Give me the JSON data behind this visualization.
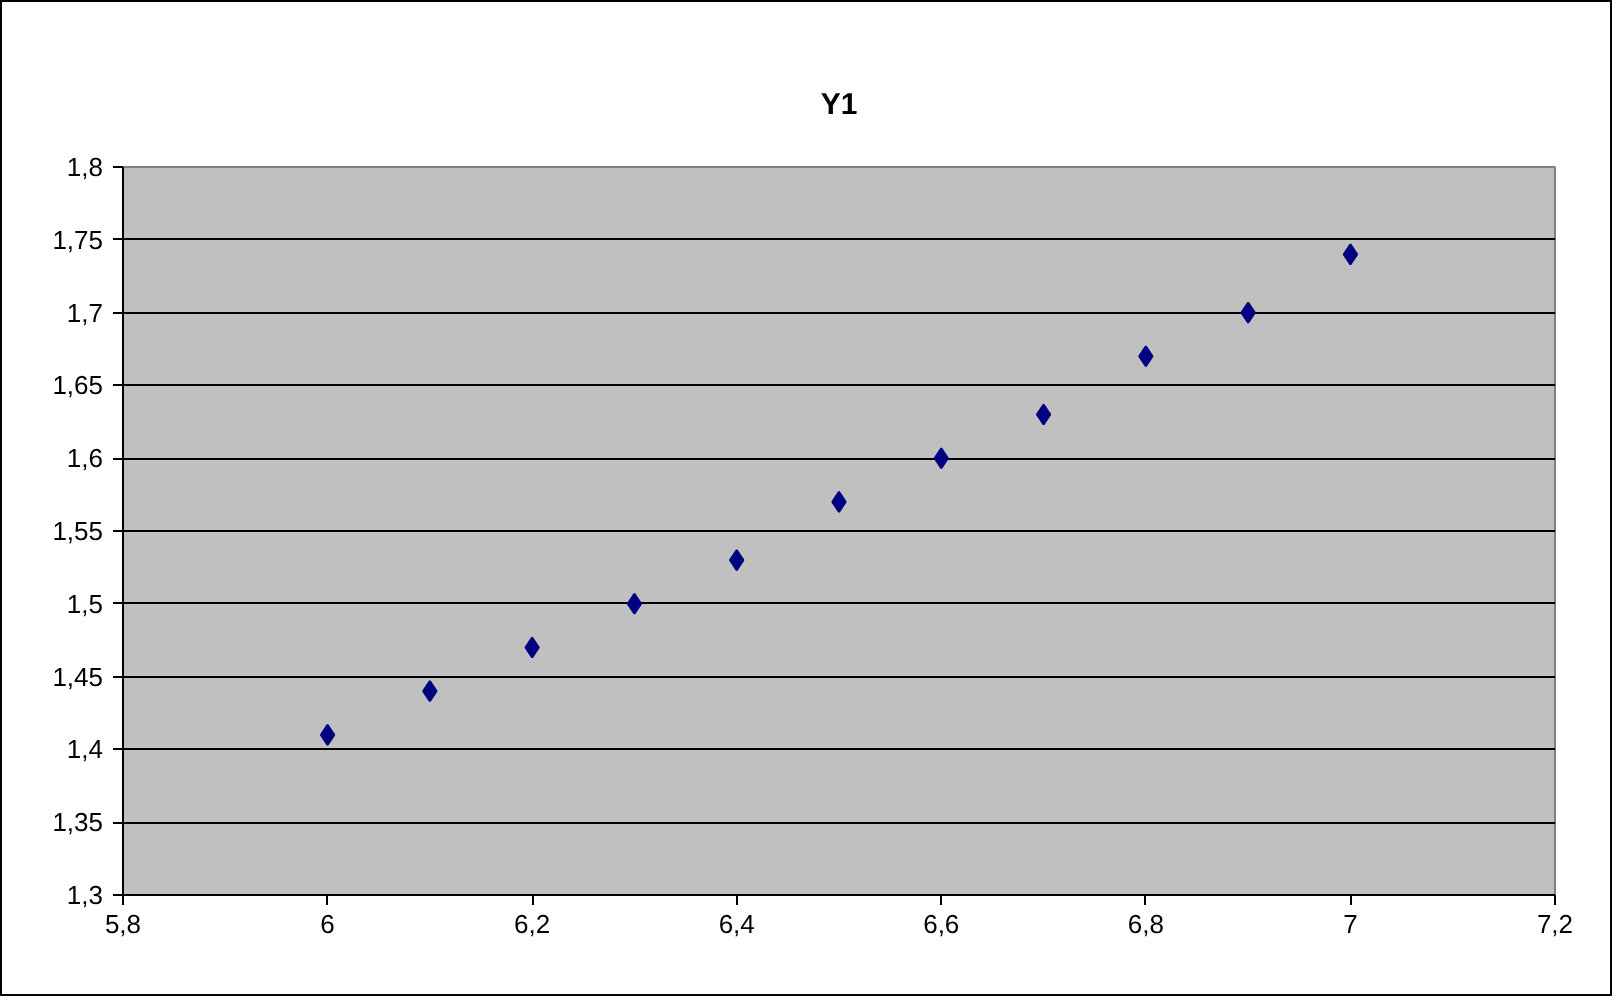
{
  "chart_data": {
    "type": "scatter",
    "title": "Y1",
    "x": [
      6,
      6.1,
      6.2,
      6.3,
      6.4,
      6.5,
      6.6,
      6.7,
      6.8,
      6.9,
      7
    ],
    "series": [
      {
        "color": "#000080",
        "values": [
          1.41,
          1.44,
          1.47,
          1.5,
          1.53,
          1.57,
          1.6,
          1.63,
          1.67,
          1.7,
          1.74
        ]
      }
    ],
    "marker": "diamond",
    "grid": "y",
    "xlim": [
      5.8,
      7.2
    ],
    "xticks": [
      {
        "value": 5.8,
        "label": "5,8"
      },
      6,
      {
        "value": 6.2,
        "label": "6,2"
      },
      {
        "value": 6.4,
        "label": "6,4"
      },
      {
        "value": 6.6,
        "label": "6,6"
      },
      {
        "value": 6.8,
        "label": "6,8"
      },
      7,
      {
        "value": 7.2,
        "label": "7,2"
      }
    ],
    "ylim": [
      1.3,
      1.8
    ],
    "yticks": [
      {
        "value": 1.3,
        "label": "1,3"
      },
      {
        "value": 1.35,
        "label": "1,35"
      },
      {
        "value": 1.4,
        "label": "1,4"
      },
      {
        "value": 1.45,
        "label": "1,45"
      },
      {
        "value": 1.5,
        "label": "1,5"
      },
      {
        "value": 1.55,
        "label": "1,55"
      },
      {
        "value": 1.6,
        "label": "1,6"
      },
      {
        "value": 1.65,
        "label": "1,65"
      },
      {
        "value": 1.7,
        "label": "1,7"
      },
      {
        "value": 1.75,
        "label": "1,75"
      },
      {
        "value": 1.8,
        "label": "1,8"
      }
    ]
  }
}
